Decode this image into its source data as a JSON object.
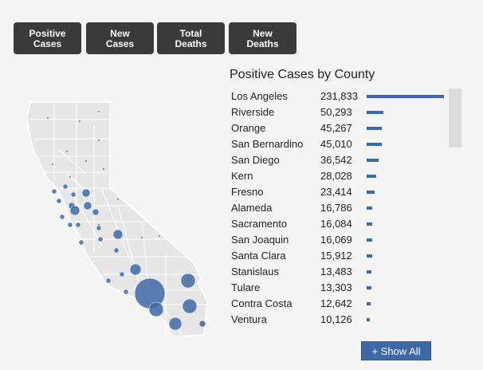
{
  "tabs": [
    {
      "label": "Positive\nCases"
    },
    {
      "label": "New\nCases"
    },
    {
      "label": "Total\nDeaths"
    },
    {
      "label": "New\nDeaths"
    }
  ],
  "panel_title": "Positive Cases by County",
  "counties": [
    {
      "name": "Los Angeles",
      "value": "231,833",
      "n": 231833
    },
    {
      "name": "Riverside",
      "value": "50,293",
      "n": 50293
    },
    {
      "name": "Orange",
      "value": "45,267",
      "n": 45267
    },
    {
      "name": "San Bernardino",
      "value": "45,010",
      "n": 45010
    },
    {
      "name": "San Diego",
      "value": "36,542",
      "n": 36542
    },
    {
      "name": "Kern",
      "value": "28,028",
      "n": 28028
    },
    {
      "name": "Fresno",
      "value": "23,414",
      "n": 23414
    },
    {
      "name": "Alameda",
      "value": "16,786",
      "n": 16786
    },
    {
      "name": "Sacramento",
      "value": "16,084",
      "n": 16084
    },
    {
      "name": "San Joaquin",
      "value": "16,069",
      "n": 16069
    },
    {
      "name": "Santa Clara",
      "value": "15,912",
      "n": 15912
    },
    {
      "name": "Stanislaus",
      "value": "13,483",
      "n": 13483
    },
    {
      "name": "Tulare",
      "value": "13,303",
      "n": 13303
    },
    {
      "name": "Contra Costa",
      "value": "12,642",
      "n": 12642
    },
    {
      "name": "Ventura",
      "value": "10,126",
      "n": 10126
    }
  ],
  "show_all_label": "+ Show All",
  "colors": {
    "accent": "#3d6aa6",
    "button_dark": "#3a3a3a",
    "map_fill": "#e6e6e6"
  },
  "map_bubbles": [
    {
      "county": "Los Angeles",
      "n": 231833
    },
    {
      "county": "Riverside",
      "n": 50293
    },
    {
      "county": "Orange",
      "n": 45267
    },
    {
      "county": "San Bernardino",
      "n": 45010
    },
    {
      "county": "San Diego",
      "n": 36542
    },
    {
      "county": "Kern",
      "n": 28028
    },
    {
      "county": "Fresno",
      "n": 23414
    }
  ]
}
